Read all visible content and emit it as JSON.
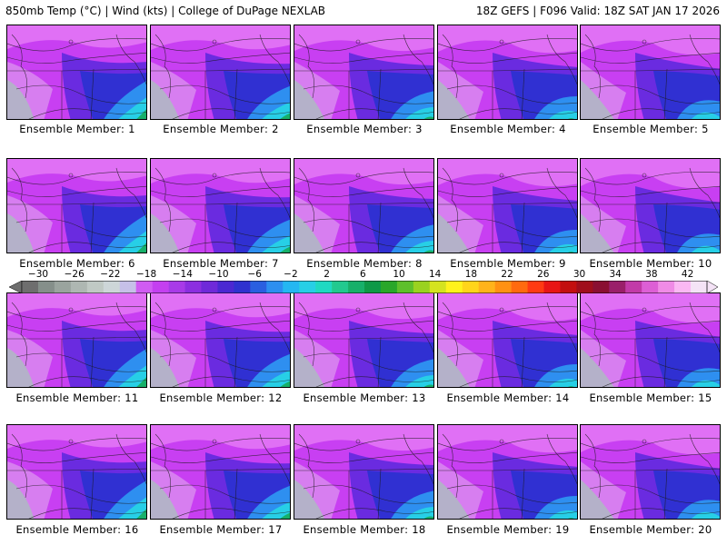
{
  "header": {
    "left": "850mb Temp (°C) | Wind (kts) | College of DuPage NEXLAB",
    "right": "18Z GEFS | F096 Valid: 18Z SAT JAN 17 2026"
  },
  "panels": [
    {
      "label": "Ensemble Member: 1"
    },
    {
      "label": "Ensemble Member: 2"
    },
    {
      "label": "Ensemble Member: 3"
    },
    {
      "label": "Ensemble Member: 4"
    },
    {
      "label": "Ensemble Member: 5"
    },
    {
      "label": "Ensemble Member: 6"
    },
    {
      "label": "Ensemble Member: 7"
    },
    {
      "label": "Ensemble Member: 8"
    },
    {
      "label": "Ensemble Member: 9"
    },
    {
      "label": "Ensemble Member: 10"
    },
    {
      "label": "Ensemble Member: 11"
    },
    {
      "label": "Ensemble Member: 12"
    },
    {
      "label": "Ensemble Member: 13"
    },
    {
      "label": "Ensemble Member: 14"
    },
    {
      "label": "Ensemble Member: 15"
    },
    {
      "label": "Ensemble Member: 16"
    },
    {
      "label": "Ensemble Member: 17"
    },
    {
      "label": "Ensemble Member: 18"
    },
    {
      "label": "Ensemble Member: 19"
    },
    {
      "label": "Ensemble Member: 20"
    }
  ],
  "colorbar": {
    "tick_labels": [
      "−30",
      "−26",
      "−22",
      "−18",
      "−14",
      "−10",
      "−6",
      "−2",
      "2",
      "6",
      "10",
      "14",
      "18",
      "22",
      "26",
      "30",
      "34",
      "38",
      "42"
    ],
    "colors": [
      "#6e6e6e",
      "#858f8a",
      "#9aa49e",
      "#aeb7b2",
      "#c0c9c4",
      "#cdd6d8",
      "#c6c0e8",
      "#d05cf2",
      "#c43ff0",
      "#a83ae8",
      "#8c2ee0",
      "#6f29d9",
      "#4b28d2",
      "#2f32cf",
      "#2a5fe0",
      "#2d8ff0",
      "#24b7f2",
      "#27cfe6",
      "#1fd9c2",
      "#22c98f",
      "#17b06a",
      "#0e9947",
      "#2aa72a",
      "#5ec02b",
      "#9ad21f",
      "#d5e31f",
      "#fff21c",
      "#ffd51a",
      "#ffb31a",
      "#ff9112",
      "#ff6a0f",
      "#ff3a12",
      "#e81515",
      "#c30f0f",
      "#a00e1c",
      "#8a0f32",
      "#9a1f6a",
      "#c23aa8",
      "#dd5fd5",
      "#f08be6",
      "#fbb8f3",
      "#f4e3f6"
    ]
  }
}
